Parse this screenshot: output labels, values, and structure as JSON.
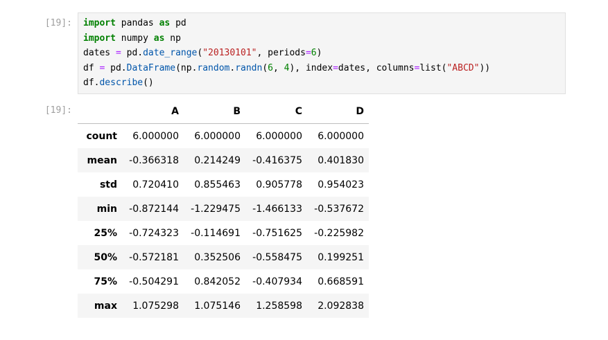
{
  "input": {
    "prompt": "[19]:",
    "code": [
      "import pandas as pd",
      "import numpy as np",
      "dates = pd.date_range(\"20130101\", periods=6)",
      "df = pd.DataFrame(np.random.randn(6, 4), index=dates, columns=list(\"ABCD\"))",
      "df.describe()"
    ]
  },
  "output": {
    "prompt": "[19]:",
    "table": {
      "columns": [
        "A",
        "B",
        "C",
        "D"
      ],
      "rows": [
        {
          "index": "count",
          "values": [
            "6.000000",
            "6.000000",
            "6.000000",
            "6.000000"
          ]
        },
        {
          "index": "mean",
          "values": [
            "-0.366318",
            "0.214249",
            "-0.416375",
            "0.401830"
          ]
        },
        {
          "index": "std",
          "values": [
            "0.720410",
            "0.855463",
            "0.905778",
            "0.954023"
          ]
        },
        {
          "index": "min",
          "values": [
            "-0.872144",
            "-1.229475",
            "-1.466133",
            "-0.537672"
          ]
        },
        {
          "index": "25%",
          "values": [
            "-0.724323",
            "-0.114691",
            "-0.751625",
            "-0.225982"
          ]
        },
        {
          "index": "50%",
          "values": [
            "-0.572181",
            "0.352506",
            "-0.558475",
            "0.199251"
          ]
        },
        {
          "index": "75%",
          "values": [
            "-0.504291",
            "0.842052",
            "-0.407934",
            "0.668591"
          ]
        },
        {
          "index": "max",
          "values": [
            "1.075298",
            "1.075146",
            "1.258598",
            "2.092838"
          ]
        }
      ]
    }
  }
}
